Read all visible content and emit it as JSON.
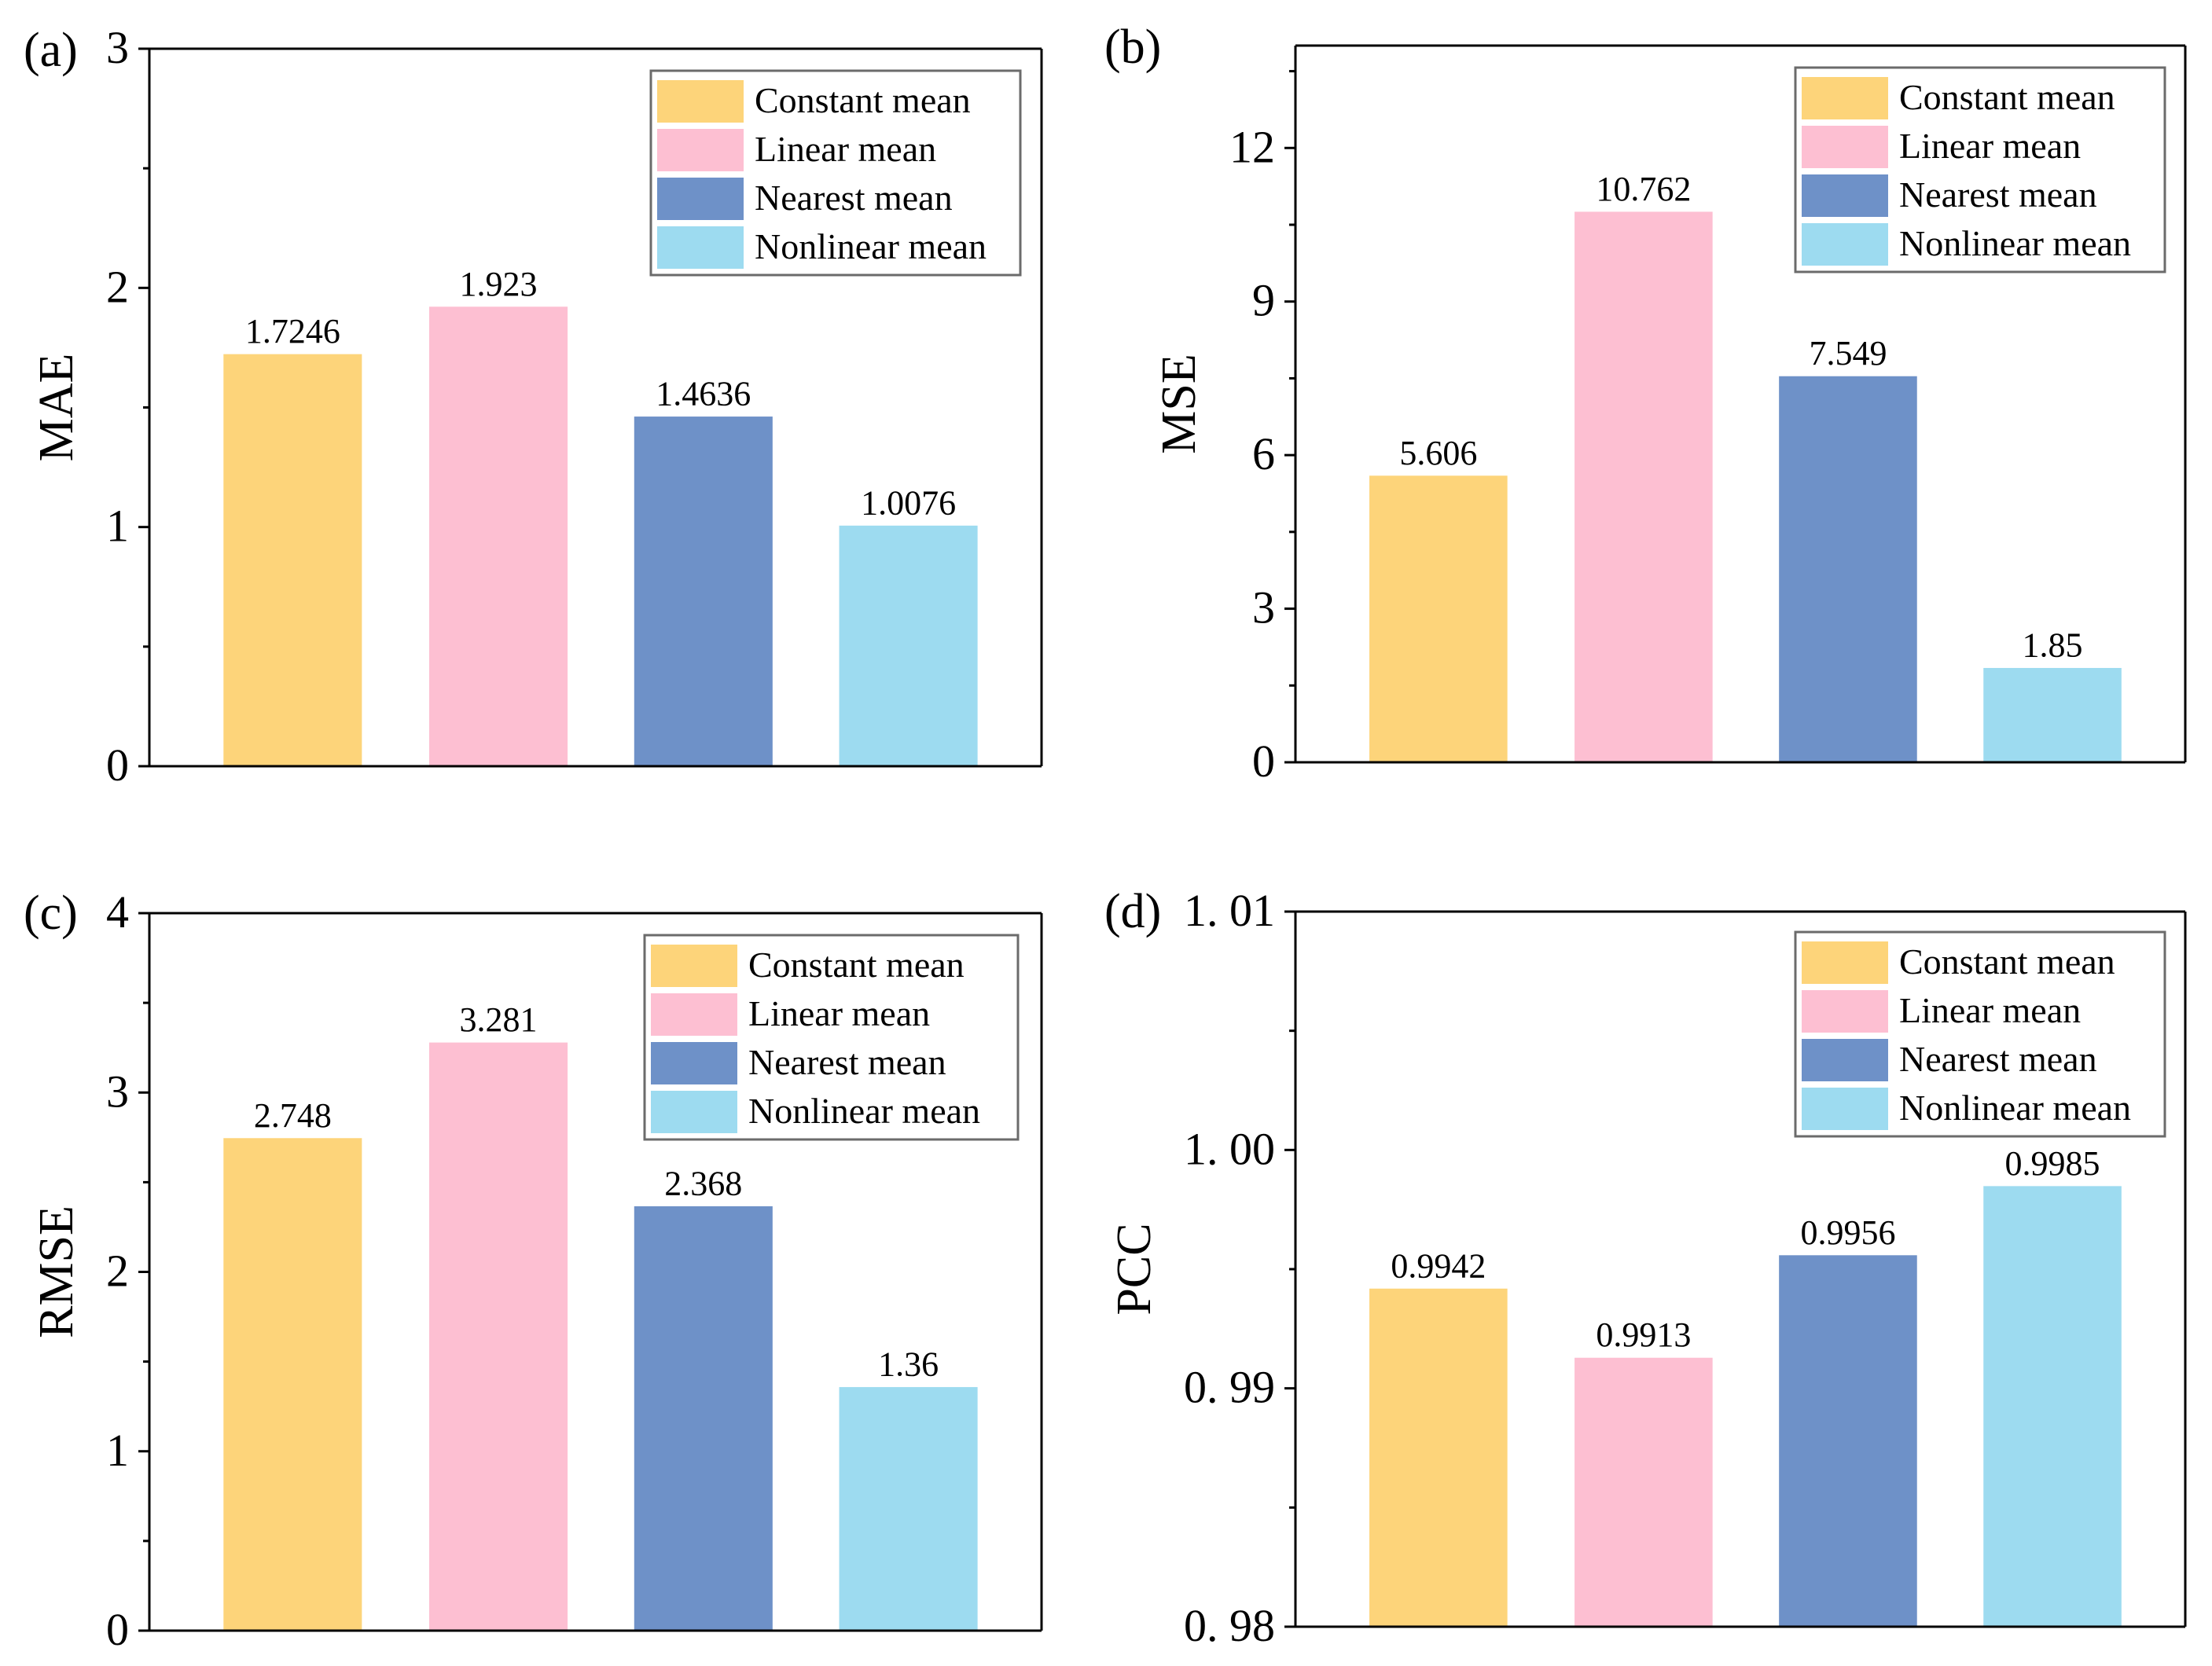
{
  "colors": {
    "series": [
      "#FDD47A",
      "#FDBFD2",
      "#6E91C8",
      "#9DDBF0"
    ],
    "axis": "#000000",
    "legend_border": "#6b6b6b"
  },
  "chart_data": [
    {
      "panel": "(a)",
      "type": "bar",
      "ylabel": "MAE",
      "categories": [
        "Constant mean",
        "Linear mean",
        "Nearest mean",
        "Nonlinear mean"
      ],
      "values": [
        1.7246,
        1.923,
        1.4636,
        1.0076
      ],
      "value_labels": [
        "1.7246",
        "1.923",
        "1.4636",
        "1.0076"
      ],
      "ylim": [
        0,
        3
      ],
      "yticks": [
        0,
        1,
        2,
        3
      ],
      "ytick_labels": [
        "0",
        "1",
        "2",
        "3"
      ],
      "minor_ticks": true,
      "legend": [
        "Constant mean",
        "Linear mean",
        "Nearest mean",
        "Nonlinear mean"
      ],
      "legend_position": "top-right",
      "grid": false
    },
    {
      "panel": "(b)",
      "type": "bar",
      "ylabel": "MSE",
      "categories": [
        "Constant mean",
        "Linear mean",
        "Nearest mean",
        "Nonlinear mean"
      ],
      "values": [
        5.606,
        10.762,
        7.549,
        1.85
      ],
      "value_labels": [
        "5.606",
        "10.762",
        "7.549",
        "1.85"
      ],
      "ylim": [
        0,
        14
      ],
      "yticks": [
        0,
        3,
        6,
        9,
        12
      ],
      "ytick_labels": [
        "0",
        "3",
        "6",
        "9",
        "12"
      ],
      "minor_ticks": true,
      "legend": [
        "Constant mean",
        "Linear mean",
        "Nearest mean",
        "Nonlinear mean"
      ],
      "legend_position": "top-right",
      "grid": false
    },
    {
      "panel": "(c)",
      "type": "bar",
      "ylabel": "RMSE",
      "categories": [
        "Constant mean",
        "Linear mean",
        "Nearest mean",
        "Nonlinear mean"
      ],
      "values": [
        2.748,
        3.281,
        2.368,
        1.36
      ],
      "value_labels": [
        "2.748",
        "3.281",
        "2.368",
        "1.36"
      ],
      "ylim": [
        0,
        4
      ],
      "yticks": [
        0,
        1,
        2,
        3,
        4
      ],
      "ytick_labels": [
        "0",
        "1",
        "2",
        "3",
        "4"
      ],
      "minor_ticks": true,
      "legend": [
        "Constant mean",
        "Linear mean",
        "Nearest mean",
        "Nonlinear mean"
      ],
      "legend_position": "top-right",
      "grid": false
    },
    {
      "panel": "(d)",
      "type": "bar",
      "ylabel": "PCC",
      "categories": [
        "Constant mean",
        "Linear mean",
        "Nearest mean",
        "Nonlinear mean"
      ],
      "values": [
        0.9942,
        0.9913,
        0.9956,
        0.9985
      ],
      "value_labels": [
        "0.9942",
        "0.9913",
        "0.9956",
        "0.9985"
      ],
      "ylim": [
        0.98,
        1.01
      ],
      "yticks": [
        0.98,
        0.99,
        1.0,
        1.01
      ],
      "ytick_labels": [
        "0. 98",
        "0. 99",
        "1. 00",
        "1. 01"
      ],
      "minor_ticks": true,
      "legend": [
        "Constant mean",
        "Linear mean",
        "Nearest mean",
        "Nonlinear mean"
      ],
      "legend_position": "top-right",
      "grid": false
    }
  ]
}
